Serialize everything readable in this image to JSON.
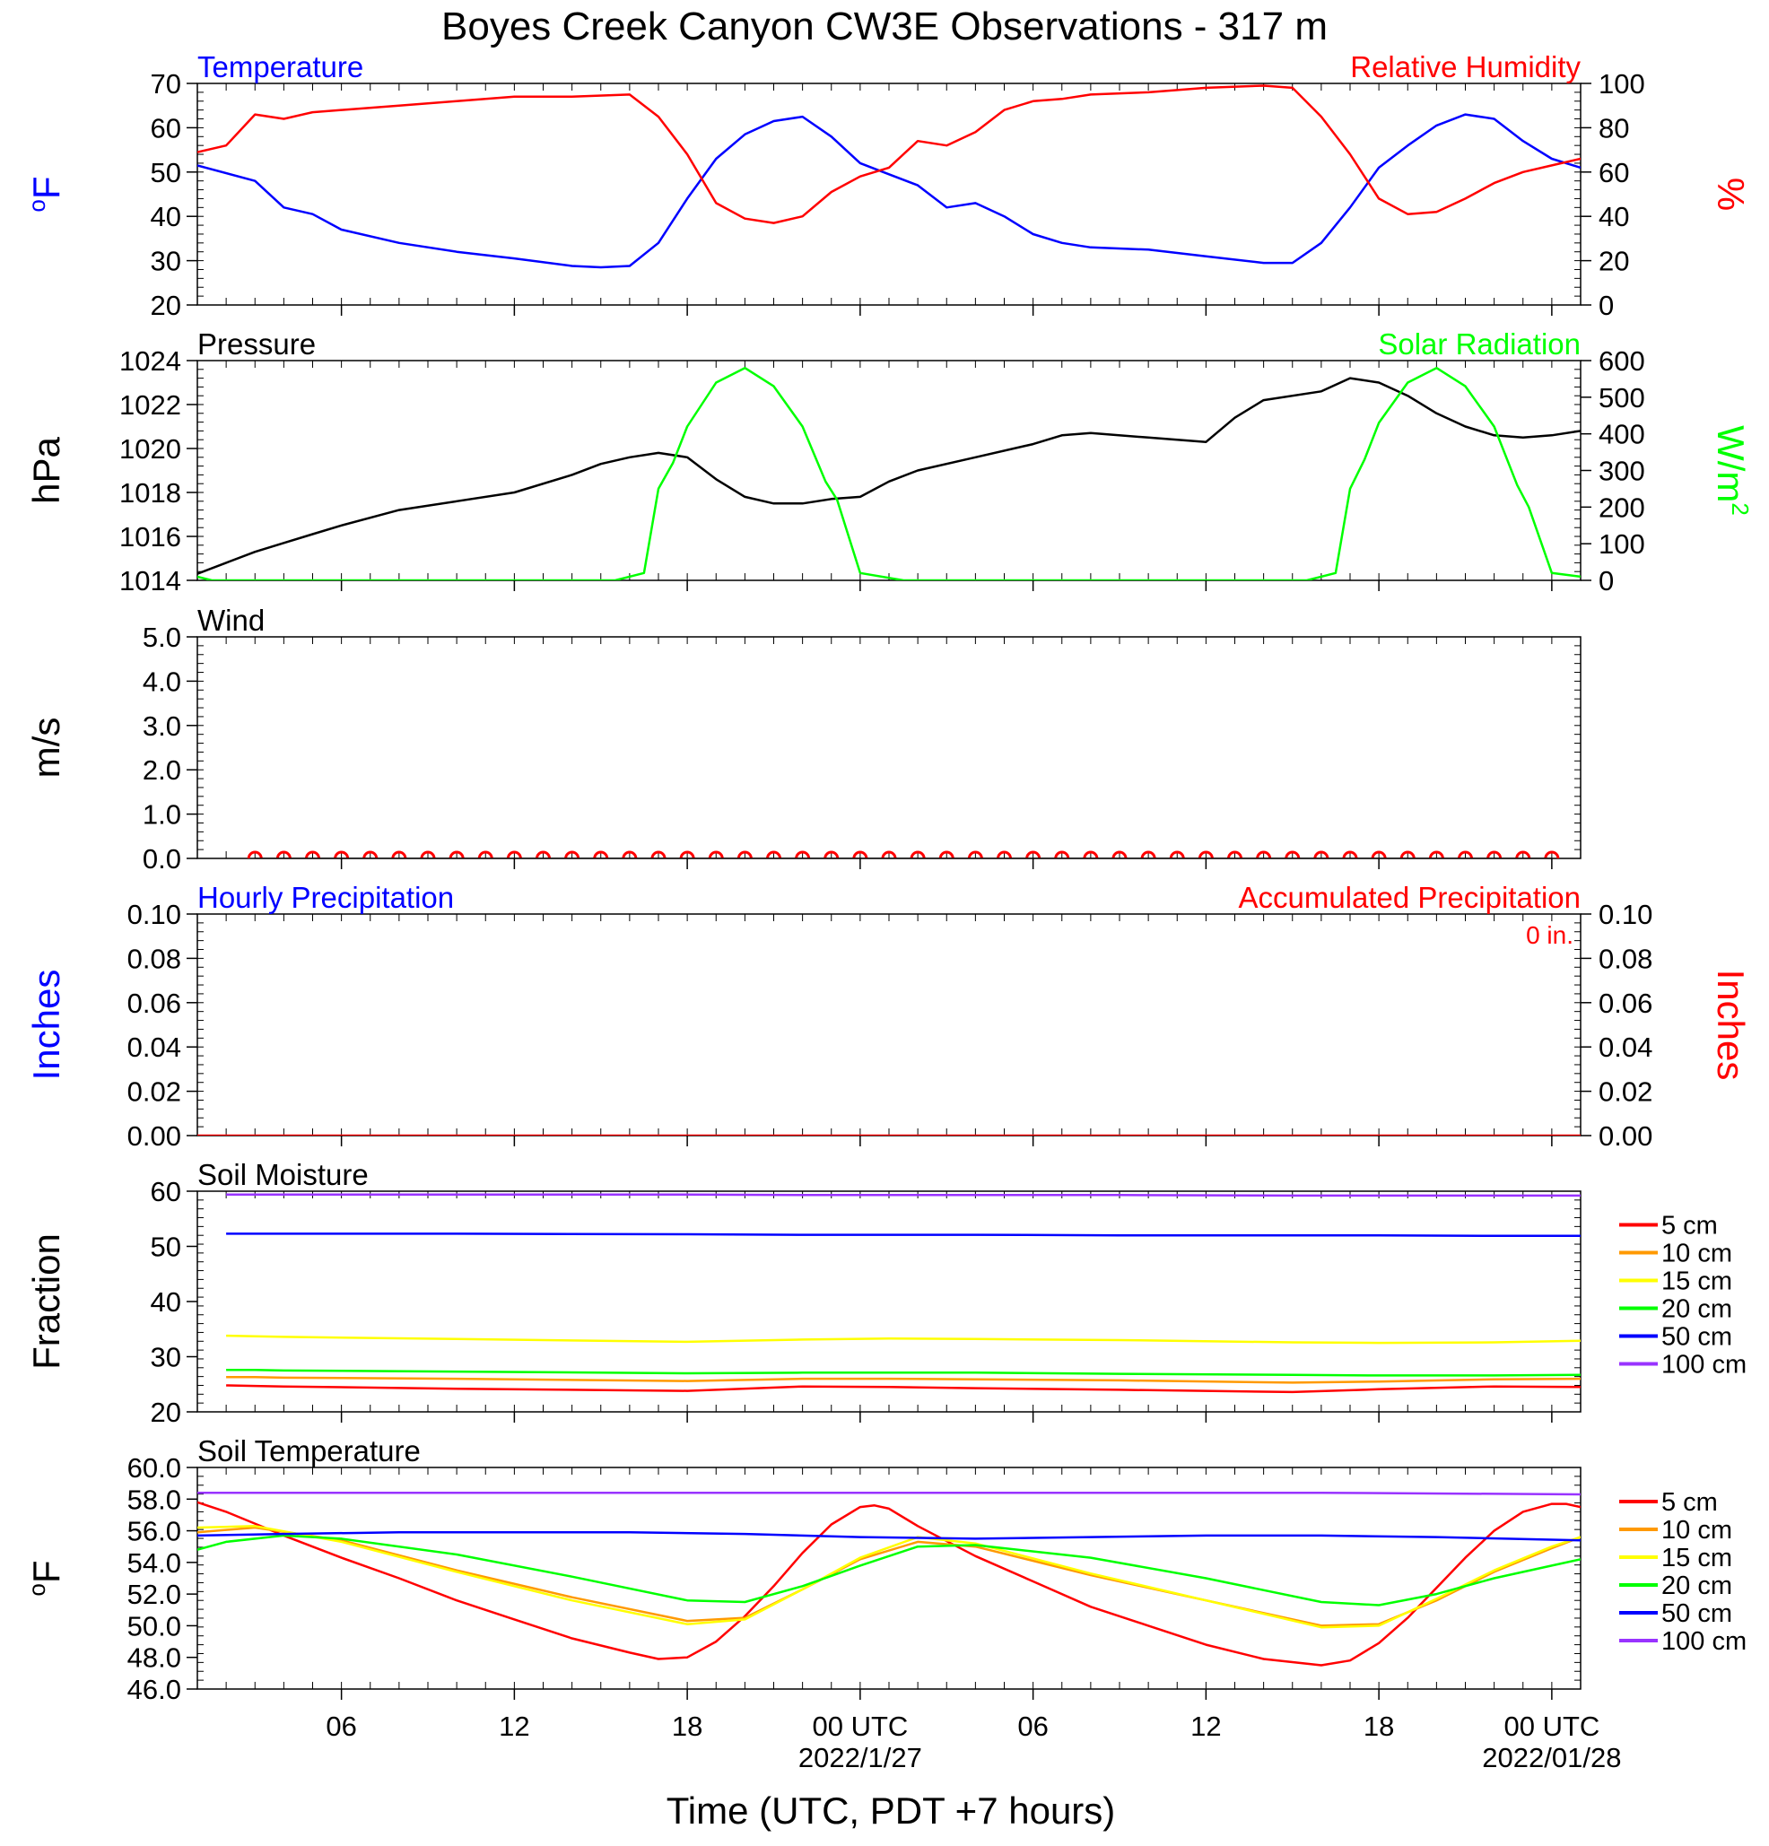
{
  "figure": {
    "title": "Boyes Creek Canyon CW3E Observations - 317 m",
    "xlabel": "Time (UTC, PDT +7 hours)",
    "x_ticks": [
      "06",
      "12",
      "18",
      "00 UTC",
      "06",
      "12",
      "18",
      "00 UTC"
    ],
    "date_labels": [
      "2022/1/27",
      "2022/01/28"
    ]
  },
  "chart_data": [
    {
      "type": "line",
      "title_left": "Temperature",
      "title_right": "Relative Humidity",
      "ylabel_left_sup": "o",
      "ylabel_left": "F",
      "ylabel_right": "%",
      "ylim_left": [
        20,
        70
      ],
      "yticks_left": [
        "70",
        "60",
        "50",
        "40",
        "30",
        "20"
      ],
      "ylim_right": [
        0,
        100
      ],
      "yticks_right": [
        "100",
        "80",
        "60",
        "40",
        "20",
        "0"
      ],
      "x_hours_range": [
        1,
        49
      ],
      "series": [
        {
          "name": "Temperature",
          "color": "#0000ff",
          "axis": "left",
          "x": [
            1,
            3,
            4,
            5,
            6,
            8,
            10,
            12,
            14,
            15,
            16,
            17,
            18,
            19,
            20,
            21,
            22,
            23,
            24,
            25,
            26,
            27,
            28,
            29,
            30,
            31,
            32,
            34,
            36,
            38,
            39,
            40,
            41,
            42,
            43,
            44,
            45,
            46,
            47,
            48,
            49
          ],
          "y": [
            51.5,
            48,
            42,
            40.5,
            37,
            34,
            32,
            30.5,
            28.8,
            28.5,
            28.8,
            34,
            44,
            53,
            58.5,
            61.5,
            62.5,
            58,
            52,
            49.5,
            47,
            42,
            43,
            40,
            36,
            34,
            33,
            32.5,
            31,
            29.5,
            29.5,
            34,
            42,
            51,
            56,
            60.5,
            63,
            62,
            57,
            53,
            51
          ]
        },
        {
          "name": "Relative Humidity",
          "color": "#ff0000",
          "axis": "right",
          "x": [
            1,
            2,
            3,
            4,
            5,
            6,
            8,
            10,
            12,
            14,
            16,
            17,
            18,
            19,
            20,
            21,
            22,
            23,
            24,
            25,
            26,
            27,
            28,
            29,
            30,
            31,
            32,
            34,
            36,
            38,
            39,
            40,
            41,
            42,
            43,
            44,
            45,
            46,
            47,
            48,
            49
          ],
          "y": [
            69,
            72,
            86,
            84,
            87,
            88,
            90,
            92,
            94,
            94,
            95,
            85,
            68,
            46,
            39,
            37,
            40,
            51,
            58,
            62,
            74,
            72,
            78,
            88,
            92,
            93,
            95,
            96,
            98,
            99,
            98,
            85,
            68,
            48,
            41,
            42,
            48,
            55,
            60,
            63,
            66
          ]
        }
      ]
    },
    {
      "type": "line",
      "title_left": "Pressure",
      "title_right": "Solar Radiation",
      "ylabel_left": "hPa",
      "ylabel_right": "W/m",
      "ylabel_right_sup": "2",
      "ylim_left": [
        1014,
        1024
      ],
      "yticks_left": [
        "1024",
        "1022",
        "1020",
        "1018",
        "1016",
        "1014"
      ],
      "ylim_right": [
        0,
        600
      ],
      "yticks_right": [
        "600",
        "500",
        "400",
        "300",
        "200",
        "100",
        "0"
      ],
      "series": [
        {
          "name": "Pressure",
          "color": "#000000",
          "axis": "left",
          "x": [
            1,
            2,
            3,
            4,
            5,
            6,
            8,
            10,
            12,
            14,
            15,
            16,
            17,
            18,
            19,
            20,
            21,
            22,
            23,
            24,
            25,
            26,
            28,
            30,
            31,
            32,
            34,
            36,
            37,
            38,
            40,
            41,
            42,
            43,
            44,
            45,
            46,
            47,
            48,
            49
          ],
          "y": [
            1014.3,
            1014.8,
            1015.3,
            1015.7,
            1016.1,
            1016.5,
            1017.2,
            1017.6,
            1018.0,
            1018.8,
            1019.3,
            1019.6,
            1019.8,
            1019.6,
            1018.6,
            1017.8,
            1017.5,
            1017.5,
            1017.7,
            1017.8,
            1018.5,
            1019.0,
            1019.6,
            1020.2,
            1020.6,
            1020.7,
            1020.5,
            1020.3,
            1021.4,
            1022.2,
            1022.6,
            1023.2,
            1023.0,
            1022.4,
            1021.6,
            1021.0,
            1020.6,
            1020.5,
            1020.6,
            1020.8
          ]
        },
        {
          "name": "Solar Radiation",
          "color": "#00ff00",
          "axis": "right",
          "x": [
            1,
            1.5,
            15.5,
            16.5,
            17,
            17.5,
            18,
            19,
            20,
            21,
            22,
            22.8,
            23.2,
            24,
            25.5,
            39.5,
            40.5,
            41,
            41.5,
            42,
            43,
            44,
            45,
            46,
            46.8,
            47.2,
            48,
            49
          ],
          "y": [
            10,
            0,
            0,
            20,
            250,
            320,
            420,
            540,
            580,
            530,
            420,
            270,
            220,
            20,
            0,
            0,
            20,
            250,
            330,
            430,
            540,
            580,
            530,
            420,
            260,
            200,
            20,
            10
          ]
        }
      ]
    },
    {
      "type": "scatter",
      "title_left": "Wind",
      "ylabel_left": "m/s",
      "ylim_left": [
        0,
        5
      ],
      "yticks_left": [
        "5.0",
        "4.0",
        "3.0",
        "2.0",
        "1.0",
        "0.0"
      ],
      "series": [
        {
          "name": "Wind",
          "color": "#ff0000",
          "x": [
            3,
            4,
            5,
            6,
            7,
            8,
            9,
            10,
            11,
            12,
            13,
            14,
            15,
            16,
            17,
            18,
            19,
            20,
            21,
            22,
            23,
            24,
            25,
            26,
            27,
            28,
            29,
            30,
            31,
            32,
            33,
            34,
            35,
            36,
            37,
            38,
            39,
            40,
            41,
            42,
            43,
            44,
            45,
            46,
            47,
            48
          ],
          "y": [
            0,
            0,
            0,
            0,
            0,
            0,
            0,
            0,
            0,
            0,
            0,
            0,
            0,
            0,
            0,
            0,
            0,
            0,
            0,
            0,
            0,
            0,
            0,
            0,
            0,
            0,
            0,
            0,
            0,
            0,
            0,
            0,
            0,
            0,
            0,
            0,
            0,
            0,
            0,
            0,
            0,
            0,
            0,
            0,
            0,
            0
          ]
        }
      ]
    },
    {
      "type": "line",
      "title_left": "Hourly Precipitation",
      "title_right": "Accumulated Precipitation",
      "annotation": "0 in.",
      "ylabel_left": "Inches",
      "ylabel_right": "Inches",
      "ylim_left": [
        0,
        0.1
      ],
      "yticks_left": [
        "0.10",
        "0.08",
        "0.06",
        "0.04",
        "0.02",
        "0.00"
      ],
      "ylim_right": [
        0,
        0.1
      ],
      "yticks_right": [
        "0.10",
        "0.08",
        "0.06",
        "0.04",
        "0.02",
        "0.00"
      ],
      "series": [
        {
          "name": "Accumulated Precipitation",
          "color": "#ff0000",
          "x": [
            1,
            49
          ],
          "y": [
            0,
            0
          ]
        }
      ]
    },
    {
      "type": "line",
      "title_left": "Soil Moisture",
      "ylabel_left": "Fraction",
      "ylim_left": [
        20,
        60
      ],
      "yticks_left": [
        "60",
        "50",
        "40",
        "30",
        "20"
      ],
      "legend": [
        "5 cm",
        "10 cm",
        "15 cm",
        "20 cm",
        "50 cm",
        "100 cm"
      ],
      "series": [
        {
          "name": "5 cm",
          "color": "#ff0000",
          "x": [
            2,
            3,
            4,
            10,
            18,
            22,
            25,
            28,
            33,
            39,
            42,
            46,
            49
          ],
          "y": [
            24.8,
            24.7,
            24.6,
            24.2,
            23.8,
            24.6,
            24.5,
            24.3,
            24.0,
            23.6,
            24.1,
            24.6,
            24.5
          ]
        },
        {
          "name": "10 cm",
          "color": "#ff9900",
          "x": [
            2,
            3,
            4,
            10,
            18,
            22,
            25,
            28,
            33,
            39,
            42,
            46,
            49
          ],
          "y": [
            26.3,
            26.3,
            26.2,
            26.0,
            25.6,
            26.0,
            26.0,
            25.9,
            25.7,
            25.3,
            25.5,
            25.9,
            26.0
          ]
        },
        {
          "name": "15 cm",
          "color": "#ffff00",
          "x": [
            2,
            3,
            4,
            10,
            18,
            22,
            25,
            28,
            33,
            39,
            42,
            46,
            49
          ],
          "y": [
            33.8,
            33.7,
            33.6,
            33.2,
            32.7,
            33.1,
            33.3,
            33.2,
            33.0,
            32.6,
            32.5,
            32.6,
            32.9
          ]
        },
        {
          "name": "20 cm",
          "color": "#00ff00",
          "x": [
            2,
            3,
            4,
            10,
            18,
            22,
            25,
            28,
            33,
            39,
            42,
            46,
            49
          ],
          "y": [
            27.6,
            27.6,
            27.5,
            27.3,
            27.0,
            27.1,
            27.1,
            27.1,
            26.9,
            26.7,
            26.6,
            26.6,
            26.7
          ]
        },
        {
          "name": "50 cm",
          "color": "#0000ff",
          "x": [
            2,
            3,
            4,
            10,
            18,
            22,
            25,
            28,
            33,
            39,
            42,
            46,
            49
          ],
          "y": [
            52.3,
            52.3,
            52.3,
            52.3,
            52.2,
            52.1,
            52.1,
            52.1,
            52.0,
            52.0,
            52.0,
            51.9,
            51.9
          ]
        },
        {
          "name": "100 cm",
          "color": "#9933ff",
          "x": [
            2,
            3,
            4,
            10,
            18,
            22,
            25,
            28,
            33,
            39,
            42,
            46,
            49
          ],
          "y": [
            59.4,
            59.4,
            59.4,
            59.4,
            59.4,
            59.3,
            59.3,
            59.3,
            59.3,
            59.2,
            59.2,
            59.2,
            59.2
          ]
        }
      ]
    },
    {
      "type": "line",
      "title_left": "Soil Temperature",
      "ylabel_left_sup": "o",
      "ylabel_left": "F",
      "ylim_left": [
        46,
        60
      ],
      "yticks_left": [
        "60.0",
        "58.0",
        "56.0",
        "54.0",
        "52.0",
        "50.0",
        "48.0",
        "46.0"
      ],
      "legend": [
        "5 cm",
        "10 cm",
        "15 cm",
        "20 cm",
        "50 cm",
        "100 cm"
      ],
      "series": [
        {
          "name": "5 cm",
          "color": "#ff0000",
          "x": [
            1,
            2,
            4,
            6,
            8,
            10,
            12,
            14,
            16,
            17,
            18,
            19,
            20,
            21,
            22,
            23,
            24,
            24.5,
            25,
            26,
            28,
            30,
            32,
            34,
            36,
            38,
            40,
            41,
            42,
            43,
            44,
            45,
            46,
            47,
            48,
            48.5,
            49
          ],
          "y": [
            57.8,
            57.2,
            55.7,
            54.3,
            53.0,
            51.6,
            50.4,
            49.2,
            48.3,
            47.9,
            48.0,
            49.0,
            50.6,
            52.5,
            54.6,
            56.4,
            57.5,
            57.6,
            57.4,
            56.3,
            54.4,
            52.8,
            51.2,
            50.0,
            48.8,
            47.9,
            47.5,
            47.8,
            48.9,
            50.5,
            52.4,
            54.3,
            56.0,
            57.2,
            57.7,
            57.7,
            57.5
          ]
        },
        {
          "name": "10 cm",
          "color": "#ff9900",
          "x": [
            1,
            3,
            6,
            10,
            14,
            18,
            20,
            22,
            24,
            26,
            28,
            32,
            36,
            40,
            42,
            44,
            46,
            48,
            49
          ],
          "y": [
            55.9,
            56.2,
            55.4,
            53.5,
            51.8,
            50.3,
            50.5,
            52.3,
            54.2,
            55.3,
            55.0,
            53.2,
            51.6,
            50.0,
            50.1,
            51.6,
            53.4,
            54.9,
            55.6
          ]
        },
        {
          "name": "15 cm",
          "color": "#ffff00",
          "x": [
            1,
            3,
            6,
            10,
            14,
            18,
            20,
            22,
            24,
            26,
            28,
            32,
            36,
            40,
            42,
            44,
            46,
            48,
            49
          ],
          "y": [
            56.2,
            56.3,
            55.3,
            53.4,
            51.6,
            50.1,
            50.4,
            52.3,
            54.3,
            55.6,
            55.2,
            53.3,
            51.6,
            49.9,
            50.0,
            51.7,
            53.5,
            55.0,
            55.6
          ]
        },
        {
          "name": "20 cm",
          "color": "#00ff00",
          "x": [
            1,
            2,
            4,
            6,
            10,
            14,
            18,
            20,
            22,
            24,
            26,
            28,
            32,
            36,
            40,
            42,
            44,
            46,
            48,
            49
          ],
          "y": [
            54.8,
            55.3,
            55.7,
            55.5,
            54.5,
            53.1,
            51.6,
            51.5,
            52.5,
            53.8,
            55.0,
            55.1,
            54.3,
            53.0,
            51.5,
            51.3,
            52.0,
            53.0,
            53.8,
            54.2
          ]
        },
        {
          "name": "50 cm",
          "color": "#0000ff",
          "x": [
            1,
            4,
            8,
            12,
            16,
            20,
            24,
            28,
            32,
            36,
            40,
            44,
            49
          ],
          "y": [
            55.7,
            55.8,
            55.9,
            55.9,
            55.9,
            55.8,
            55.6,
            55.5,
            55.6,
            55.7,
            55.7,
            55.6,
            55.4
          ]
        },
        {
          "name": "100 cm",
          "color": "#9933ff",
          "x": [
            1,
            8,
            16,
            24,
            32,
            40,
            49
          ],
          "y": [
            58.4,
            58.4,
            58.4,
            58.4,
            58.4,
            58.4,
            58.3
          ]
        }
      ]
    }
  ]
}
